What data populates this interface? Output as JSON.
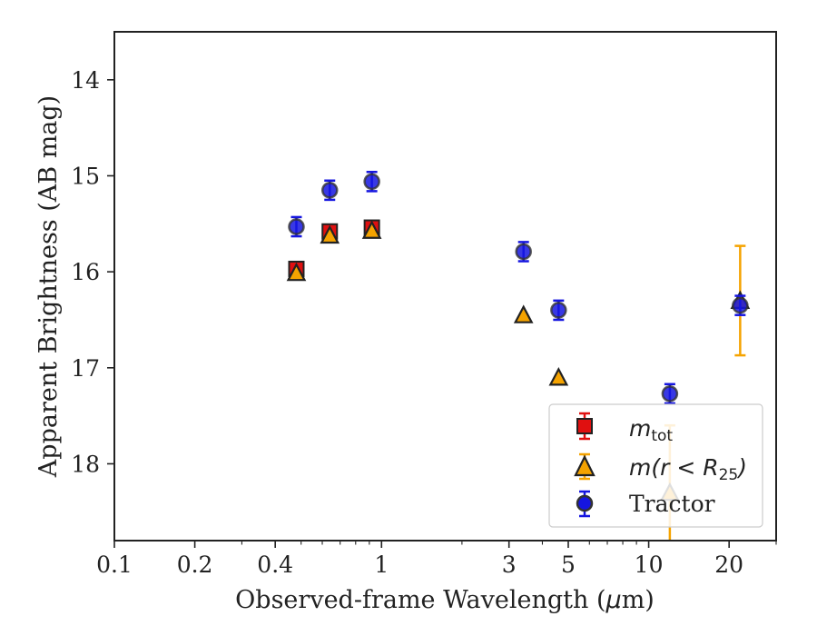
{
  "chart_data": {
    "type": "scatter",
    "xlabel": "Observed-frame Wavelength (μm)",
    "ylabel": "Apparent Brightness (AB mag)",
    "x_scale": "log",
    "xlim": [
      0.1,
      30
    ],
    "ylim": [
      18.8,
      13.5
    ],
    "y_inverted": true,
    "x_ticks": [
      {
        "value": 0.1,
        "label": "0.1"
      },
      {
        "value": 0.2,
        "label": "0.2"
      },
      {
        "value": 0.4,
        "label": "0.4"
      },
      {
        "value": 1,
        "label": "1"
      },
      {
        "value": 3,
        "label": "3"
      },
      {
        "value": 5,
        "label": "5"
      },
      {
        "value": 10,
        "label": "10"
      },
      {
        "value": 20,
        "label": "20"
      }
    ],
    "y_ticks": [
      {
        "value": 14,
        "label": "14"
      },
      {
        "value": 15,
        "label": "15"
      },
      {
        "value": 16,
        "label": "16"
      },
      {
        "value": 17,
        "label": "17"
      },
      {
        "value": 18,
        "label": "18"
      }
    ],
    "legend_position": "lower-right",
    "grid": false,
    "series": [
      {
        "name": "m_tot",
        "marker": "square",
        "color": "#e01010",
        "points": [
          {
            "x": 0.48,
            "y": 15.97,
            "err": 0.07
          },
          {
            "x": 0.64,
            "y": 15.58,
            "err": 0.07
          },
          {
            "x": 0.92,
            "y": 15.54,
            "err": 0.07
          }
        ]
      },
      {
        "name": "m(r < R25)",
        "marker": "triangle",
        "color": "#f5a300",
        "points": [
          {
            "x": 0.48,
            "y": 16.01,
            "err": 0.0
          },
          {
            "x": 0.64,
            "y": 15.62,
            "err": 0.0
          },
          {
            "x": 0.92,
            "y": 15.57,
            "err": 0.0
          },
          {
            "x": 3.4,
            "y": 16.45,
            "err": 0.0
          },
          {
            "x": 4.6,
            "y": 17.1,
            "err": 0.0
          },
          {
            "x": 12.0,
            "y": 18.3,
            "err": 0.7
          },
          {
            "x": 22.0,
            "y": 16.3,
            "err": 0.57
          }
        ]
      },
      {
        "name": "Tractor",
        "marker": "circle",
        "color": "#1515e0",
        "points": [
          {
            "x": 0.48,
            "y": 15.53,
            "err": 0.1
          },
          {
            "x": 0.64,
            "y": 15.15,
            "err": 0.1
          },
          {
            "x": 0.92,
            "y": 15.06,
            "err": 0.1
          },
          {
            "x": 3.4,
            "y": 15.79,
            "err": 0.1
          },
          {
            "x": 4.6,
            "y": 16.4,
            "err": 0.1
          },
          {
            "x": 12.0,
            "y": 17.27,
            "err": 0.1
          },
          {
            "x": 22.0,
            "y": 16.35,
            "err": 0.1
          }
        ]
      }
    ]
  },
  "axes": {
    "xlabel_text": "Observed-frame Wavelength (",
    "xlabel_unit_mu": "μ",
    "xlabel_unit_rest": "m)",
    "ylabel_text": "Apparent Brightness (AB mag)"
  },
  "legend": {
    "mtot_base": "m",
    "mtot_sub": "tot",
    "m25_base": "m",
    "m25_mid": "(r < R",
    "m25_sub": "25",
    "m25_close": ")",
    "tractor": "Tractor"
  }
}
